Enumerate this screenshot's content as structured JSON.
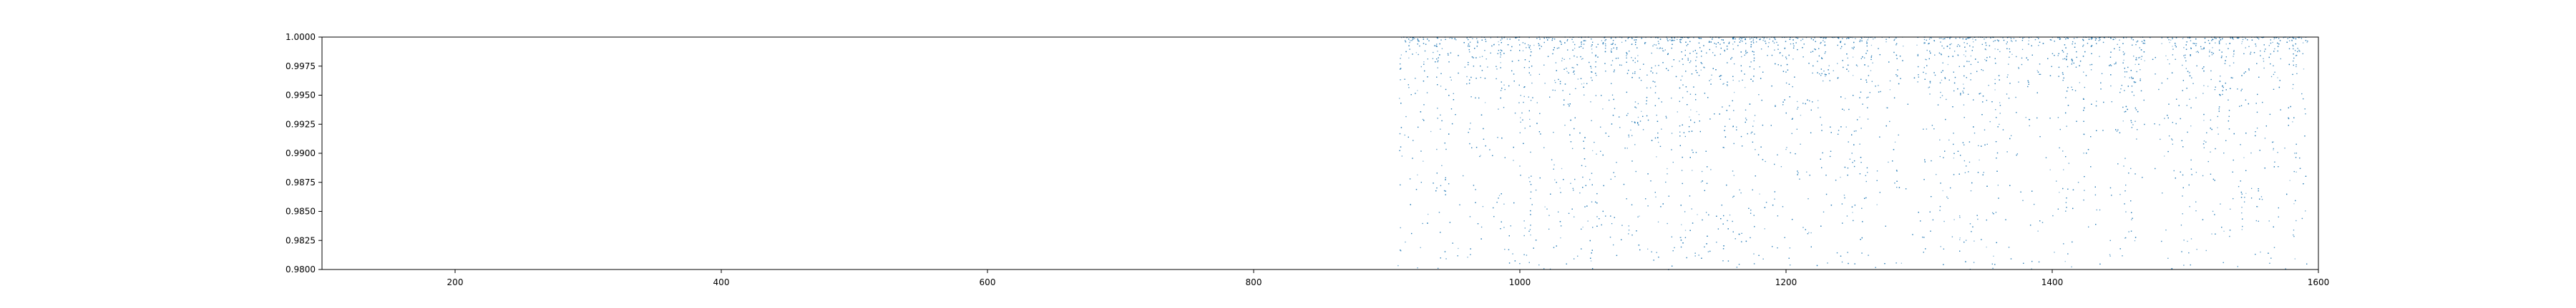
{
  "chart_data": {
    "type": "scatter",
    "title": "",
    "xlabel": "",
    "ylabel": "",
    "xlim": [
      100,
      1600
    ],
    "ylim": [
      0.98,
      1.0
    ],
    "grid": false,
    "legend": "none",
    "series_color": "#1f77b4",
    "x_ticks": [
      200,
      400,
      600,
      800,
      1000,
      1200,
      1400,
      1600
    ],
    "x_tick_labels": [
      "200",
      "400",
      "600",
      "800",
      "1000",
      "1200",
      "1400",
      "1600"
    ],
    "y_ticks": [
      0.98,
      0.9825,
      0.985,
      0.9875,
      0.99,
      0.9925,
      0.995,
      0.9975,
      1.0
    ],
    "y_tick_labels": [
      "0.9800",
      "0.9825",
      "0.9850",
      "0.9875",
      "0.9900",
      "0.9925",
      "0.9950",
      "0.9975",
      "1.0000"
    ],
    "point_cloud": {
      "x_range": [
        908,
        1592
      ],
      "y_range": [
        0.98,
        1.0
      ],
      "approx_points": 6000,
      "density_concentration": "near_upper_bound",
      "sparse_bands_x": [
        [
          1288,
          1298
        ],
        [
          1470,
          1482
        ]
      ]
    }
  }
}
